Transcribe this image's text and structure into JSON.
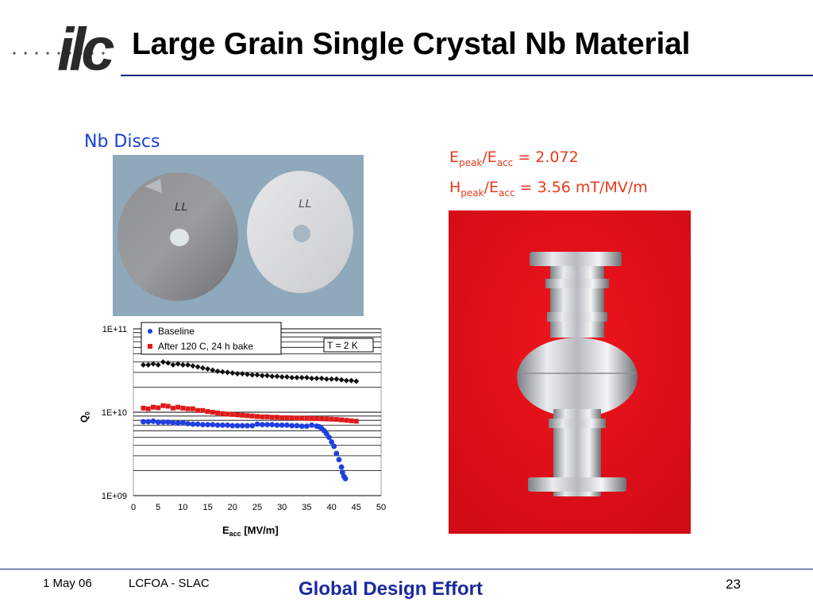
{
  "slide": {
    "title": "Large Grain Single Crystal Nb Material",
    "logo_text": "ilc"
  },
  "left_panel": {
    "discs_label": "Nb Discs",
    "disc_marks": [
      "LL",
      "LL"
    ]
  },
  "right_panel": {
    "ratio1": {
      "prefix": "E",
      "sub1": "peak",
      "mid": "/E",
      "sub2": "acc",
      "value": " = 2.072"
    },
    "ratio2": {
      "prefix": "H",
      "sub1": "peak",
      "mid": "/E",
      "sub2": "acc",
      "value": " = 3.56 mT/MV/m"
    }
  },
  "footer": {
    "date": "1 May 06",
    "event": "LCFOA - SLAC",
    "center": "Global Design Effort",
    "page": "23"
  },
  "colors": {
    "title_rule": "#1a237e",
    "accent_blue": "#1a2a9e",
    "ratio_red": "#e53a1c",
    "baseline": "#1f3fe0",
    "after_bake": "#e01a1a",
    "top_series": "#111111",
    "cavity_bg": "#e8101a"
  },
  "chart_data": {
    "type": "scatter",
    "ylabel": "Q0",
    "xlabel": "Eacc [MV/m]",
    "xlabel_main": "E",
    "xlabel_sub": "acc",
    "xlabel_rest": " [MV/m]",
    "ylabel_main": "Q",
    "ylabel_sub": "0",
    "yscale": "log",
    "xlim": [
      0,
      50
    ],
    "ylim": [
      1000000000.0,
      100000000000.0
    ],
    "xticks": [
      "0",
      "5",
      "10",
      "15",
      "20",
      "25",
      "30",
      "35",
      "40",
      "45",
      "50"
    ],
    "yticks": [
      "1E+09",
      "1E+10",
      "1E+11"
    ],
    "annotation": "T = 2 K",
    "legend": [
      "Baseline",
      "After 120 C, 24 h bake"
    ],
    "series": [
      {
        "name": "",
        "color": "#111111",
        "marker": "diamond",
        "x": [
          2,
          3,
          4,
          5,
          6,
          7,
          8,
          9,
          10,
          11,
          12,
          13,
          14,
          15,
          16,
          17,
          18,
          19,
          20,
          21,
          22,
          23,
          24,
          25,
          26,
          27,
          28,
          29,
          30,
          31,
          32,
          33,
          34,
          35,
          36,
          37,
          38,
          39,
          40,
          41,
          42,
          43,
          44,
          45
        ],
        "y": [
          37000000000.0,
          37000000000.0,
          38000000000.0,
          37000000000.0,
          40000000000.0,
          39000000000.0,
          37000000000.0,
          38000000000.0,
          37000000000.0,
          37000000000.0,
          36000000000.0,
          35000000000.0,
          34000000000.0,
          33000000000.0,
          32000000000.0,
          31000000000.0,
          30500000000.0,
          30000000000.0,
          29500000000.0,
          29000000000.0,
          29000000000.0,
          28500000000.0,
          28000000000.0,
          28000000000.0,
          27500000000.0,
          27500000000.0,
          27000000000.0,
          27000000000.0,
          26500000000.0,
          26500000000.0,
          26000000000.0,
          26000000000.0,
          26000000000.0,
          26000000000.0,
          25500000000.0,
          25500000000.0,
          25500000000.0,
          25000000000.0,
          25000000000.0,
          25000000000.0,
          24500000000.0,
          24000000000.0,
          24000000000.0,
          23500000000.0
        ]
      },
      {
        "name": "After 120 C, 24 h bake",
        "color": "#e01a1a",
        "marker": "square",
        "x": [
          2,
          3,
          4,
          5,
          6,
          7,
          8,
          9,
          10,
          11,
          12,
          13,
          14,
          15,
          16,
          17,
          18,
          19,
          20,
          21,
          22,
          23,
          24,
          25,
          26,
          27,
          28,
          29,
          30,
          31,
          32,
          33,
          34,
          35,
          36,
          37,
          38,
          39,
          40,
          41,
          42,
          43,
          44,
          45
        ],
        "y": [
          11200000000.0,
          11000000000.0,
          11500000000.0,
          11300000000.0,
          12000000000.0,
          11800000000.0,
          11200000000.0,
          11500000000.0,
          11200000000.0,
          11000000000.0,
          11000000000.0,
          10500000000.0,
          10500000000.0,
          10200000000.0,
          10000000000.0,
          9800000000.0,
          9600000000.0,
          9500000000.0,
          9400000000.0,
          9300000000.0,
          9200000000.0,
          9100000000.0,
          9000000000.0,
          8900000000.0,
          8800000000.0,
          8800000000.0,
          8700000000.0,
          8700000000.0,
          8600000000.0,
          8600000000.0,
          8550000000.0,
          8500000000.0,
          8500000000.0,
          8450000000.0,
          8400000000.0,
          8400000000.0,
          8350000000.0,
          8300000000.0,
          8250000000.0,
          8200000000.0,
          8100000000.0,
          8000000000.0,
          7900000000.0,
          7800000000.0
        ]
      },
      {
        "name": "Baseline",
        "color": "#1f3fe0",
        "marker": "circle",
        "x": [
          2,
          3,
          4,
          5,
          6,
          7,
          8,
          9,
          10,
          11,
          12,
          13,
          14,
          15,
          16,
          17,
          18,
          19,
          20,
          21,
          22,
          23,
          24,
          25,
          26,
          27,
          28,
          29,
          30,
          31,
          32,
          33,
          34,
          35,
          36,
          37,
          37.5,
          38,
          38.5,
          39,
          39.5,
          40,
          40.5,
          41,
          41.5,
          42,
          42.2,
          42.5,
          42.8
        ],
        "y": [
          7700000000.0,
          7700000000.0,
          7800000000.0,
          7600000000.0,
          7600000000.0,
          7600000000.0,
          7500000000.0,
          7400000000.0,
          7500000000.0,
          7300000000.0,
          7200000000.0,
          7200000000.0,
          7100000000.0,
          7100000000.0,
          7100000000.0,
          7000000000.0,
          7000000000.0,
          7000000000.0,
          6900000000.0,
          6900000000.0,
          6900000000.0,
          6900000000.0,
          6900000000.0,
          7200000000.0,
          7100000000.0,
          7100000000.0,
          7100000000.0,
          7000000000.0,
          7000000000.0,
          7000000000.0,
          6900000000.0,
          6900000000.0,
          6800000000.0,
          6800000000.0,
          7000000000.0,
          6800000000.0,
          6700000000.0,
          6400000000.0,
          6000000000.0,
          5500000000.0,
          5000000000.0,
          4400000000.0,
          3900000000.0,
          3200000000.0,
          2700000000.0,
          2200000000.0,
          1900000000.0,
          1700000000.0,
          1600000000.0
        ]
      }
    ]
  }
}
